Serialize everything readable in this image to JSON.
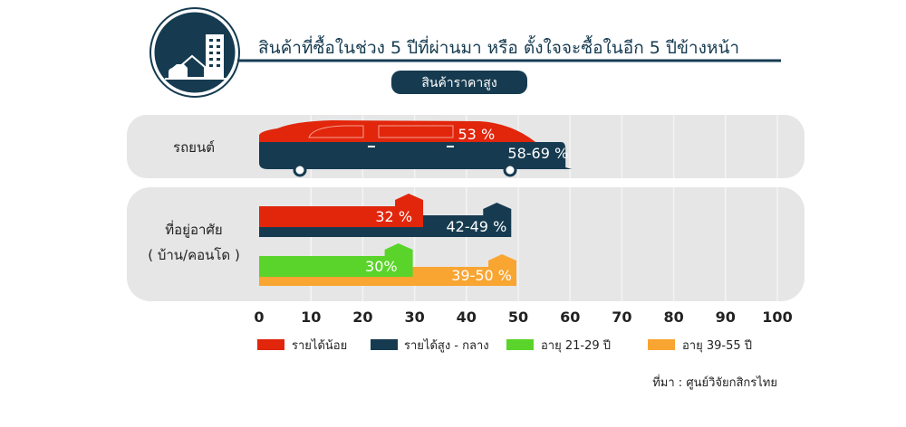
{
  "header": {
    "title": "สินค้าที่ซื้อในช่วง 5 ปีที่ผ่านมา หรือ ตั้งใจจะซื้อในอีก 5 ปีข้างหน้า",
    "subtitle": "สินค้าราคาสูง",
    "icon": "city-building-house-car-icon"
  },
  "source": "ที่มา : ศูนย์วิจัยกสิกรไทย",
  "colors": {
    "low_income": "#e1260c",
    "high_mid_income": "#163b50",
    "age_21_29": "#5ad42a",
    "age_39_55": "#f9a532",
    "panel": "#e6e6e6"
  },
  "chart_data": {
    "type": "bar",
    "orientation": "horizontal",
    "xlim": [
      0,
      100
    ],
    "ticks": [
      "0",
      "10",
      "20",
      "30",
      "40",
      "50",
      "60",
      "70",
      "80",
      "90",
      "100"
    ],
    "grid": true,
    "legend_position": "bottom",
    "legend": [
      "รายได้น้อย",
      "รายได้สูง - กลาง",
      "อายุ 21-29 ปี",
      "อายุ 39-55 ปี"
    ],
    "categories": [
      {
        "label": "รถยนต์",
        "label2": "",
        "shape": "car",
        "bars": [
          {
            "series": "รายได้น้อย",
            "value": 53,
            "label": "53 %"
          },
          {
            "series": "รายได้สูง - กลาง",
            "value": 60,
            "range": [
              58,
              69
            ],
            "label": "58-69 %"
          }
        ]
      },
      {
        "label": "ที่อยู่อาศัย",
        "label2": "( บ้าน/คอนโด )",
        "shape": "house",
        "bars": [
          {
            "series": "รายได้น้อย",
            "value": 32,
            "label": "32 %"
          },
          {
            "series": "รายได้สูง - กลาง",
            "value": 49,
            "range": [
              42,
              49
            ],
            "label": "42-49 %"
          },
          {
            "series": "อายุ 21-29 ปี",
            "value": 30,
            "label": "30%"
          },
          {
            "series": "อายุ 39-55 ปี",
            "value": 50,
            "range": [
              39,
              50
            ],
            "label": "39-50 %"
          }
        ]
      }
    ]
  }
}
